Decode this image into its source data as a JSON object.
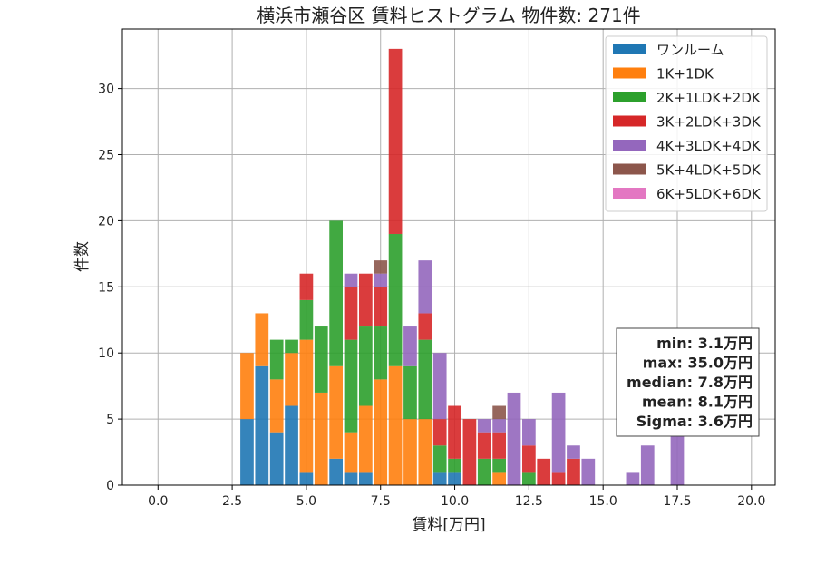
{
  "chart_data": {
    "type": "bar",
    "stacked": true,
    "title": "横浜市瀬谷区 賃料ヒストグラム 物件数: 271件",
    "xlabel": "賃料[万円]",
    "ylabel": "件数",
    "xlim": [
      -1.2,
      20.8
    ],
    "ylim": [
      0,
      34.5
    ],
    "bin_width": 0.5,
    "bar_width": 0.45,
    "grid": true,
    "legend_position": "top-right",
    "x_ticks": [
      0.0,
      2.5,
      5.0,
      7.5,
      10.0,
      12.5,
      15.0,
      17.5,
      20.0
    ],
    "x_tick_labels": [
      "0.0",
      "2.5",
      "5.0",
      "7.5",
      "10.0",
      "12.5",
      "15.0",
      "17.5",
      "20.0"
    ],
    "y_ticks": [
      0,
      5,
      10,
      15,
      20,
      25,
      30
    ],
    "y_tick_labels": [
      "0",
      "5",
      "10",
      "15",
      "20",
      "25",
      "30"
    ],
    "x": [
      3.0,
      3.5,
      4.0,
      4.5,
      5.0,
      5.5,
      6.0,
      6.5,
      7.0,
      7.5,
      8.0,
      8.5,
      9.0,
      9.5,
      10.0,
      10.5,
      11.0,
      11.5,
      12.0,
      12.5,
      13.0,
      13.5,
      14.0,
      14.5,
      15.0,
      15.5,
      16.0,
      16.5,
      17.0,
      17.5
    ],
    "series": [
      {
        "name": "ワンルーム",
        "color": "#1f77b4",
        "values": [
          5,
          9,
          4,
          6,
          1,
          0,
          2,
          1,
          1,
          0,
          0,
          0,
          0,
          1,
          1,
          0,
          0,
          0,
          0,
          0,
          0,
          0,
          0,
          0,
          0,
          0,
          0,
          0,
          0,
          0
        ]
      },
      {
        "name": "1K+1DK",
        "color": "#ff7f0e",
        "values": [
          5,
          4,
          4,
          4,
          10,
          7,
          7,
          3,
          5,
          8,
          9,
          5,
          5,
          0,
          0,
          0,
          0,
          1,
          0,
          0,
          0,
          0,
          0,
          0,
          0,
          0,
          0,
          0,
          0,
          0
        ]
      },
      {
        "name": "2K+1LDK+2DK",
        "color": "#2ca02c",
        "values": [
          0,
          0,
          3,
          1,
          3,
          5,
          11,
          7,
          6,
          4,
          10,
          4,
          6,
          2,
          1,
          0,
          2,
          1,
          0,
          1,
          0,
          0,
          0,
          0,
          0,
          0,
          0,
          0,
          0,
          0
        ]
      },
      {
        "name": "3K+2LDK+3DK",
        "color": "#d62728",
        "values": [
          0,
          0,
          0,
          0,
          2,
          0,
          0,
          4,
          4,
          3,
          14,
          0,
          2,
          2,
          4,
          5,
          2,
          2,
          0,
          2,
          2,
          1,
          2,
          0,
          0,
          0,
          0,
          0,
          0,
          0
        ]
      },
      {
        "name": "4K+3LDK+4DK",
        "color": "#9467bd",
        "values": [
          0,
          0,
          0,
          0,
          0,
          0,
          0,
          1,
          0,
          1,
          0,
          3,
          4,
          5,
          0,
          0,
          1,
          1,
          7,
          2,
          0,
          6,
          1,
          2,
          0,
          0,
          1,
          3,
          0,
          4
        ]
      },
      {
        "name": "5K+4LDK+5DK",
        "color": "#8c564b",
        "values": [
          0,
          0,
          0,
          0,
          0,
          0,
          0,
          0,
          0,
          1,
          0,
          0,
          0,
          0,
          0,
          0,
          0,
          1,
          0,
          0,
          0,
          0,
          0,
          0,
          0,
          0,
          0,
          0,
          0,
          0
        ]
      },
      {
        "name": "6K+5LDK+6DK",
        "color": "#e377c2",
        "values": [
          0,
          0,
          0,
          0,
          0,
          0,
          0,
          0,
          0,
          0,
          0,
          0,
          0,
          0,
          0,
          0,
          0,
          0,
          0,
          0,
          0,
          0,
          0,
          0,
          0,
          0,
          0,
          0,
          0,
          0
        ]
      }
    ],
    "annotation": {
      "position": "right",
      "lines": [
        "min: 3.1万円",
        "max: 35.0万円",
        "median: 7.8万円",
        "mean: 8.1万円",
        "Sigma: 3.6万円"
      ]
    }
  }
}
